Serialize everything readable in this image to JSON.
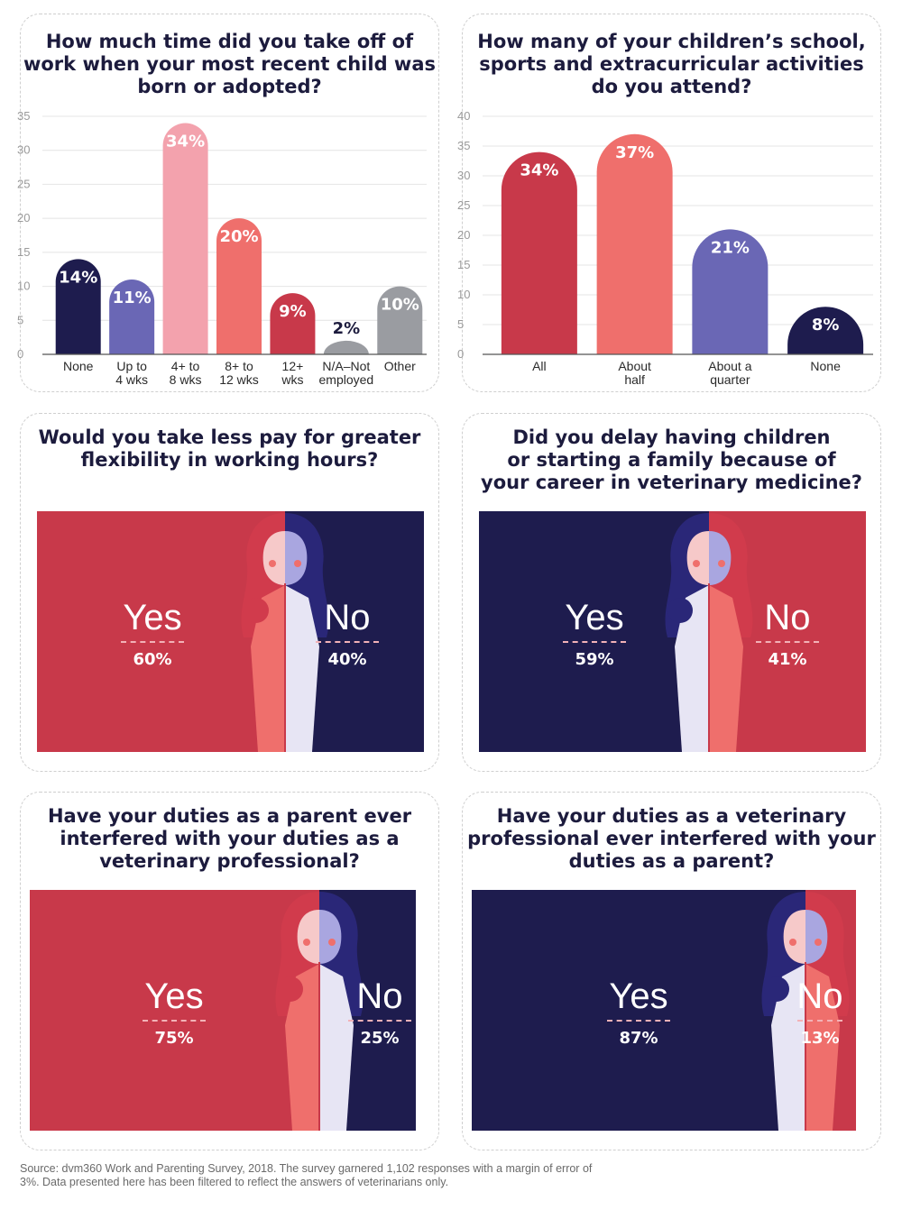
{
  "colors": {
    "navy": "#1e1c4e",
    "red": "#c8394a",
    "pink": "#f3a2ad",
    "salmon": "#ef6f6c",
    "purple": "#6a67b5",
    "gray": "#9a9ca1"
  },
  "chart_data": [
    {
      "type": "bar",
      "title": "How much time did you take off of work when your most recent child was born or adopted?",
      "categories": [
        "None",
        "Up to\n4 wks",
        "4+ to\n8 wks",
        "8+ to\n12 wks",
        "12+\nwks",
        "N/A–Not\nemployed",
        "Other"
      ],
      "values": [
        14,
        11,
        34,
        20,
        9,
        2,
        10
      ],
      "labels": [
        "14%",
        "11%",
        "34%",
        "20%",
        "9%",
        "2%",
        "10%"
      ],
      "bar_colors": [
        "#1e1c4e",
        "#6a67b5",
        "#f3a2ad",
        "#ef6f6c",
        "#c8394a",
        "#9a9ca1",
        "#9a9ca1"
      ],
      "ylim": [
        0,
        35
      ],
      "yticks": [
        0,
        5,
        10,
        15,
        20,
        25,
        30,
        35
      ],
      "grid": true
    },
    {
      "type": "bar",
      "title": "How many of your children’s school, sports and extracurricular activities do you attend?",
      "categories": [
        "All",
        "About\nhalf",
        "About a\nquarter",
        "None"
      ],
      "values": [
        34,
        37,
        21,
        8
      ],
      "labels": [
        "34%",
        "37%",
        "21%",
        "8%"
      ],
      "bar_colors": [
        "#c8394a",
        "#ef6f6c",
        "#6a67b5",
        "#1e1c4e"
      ],
      "ylim": [
        0,
        40
      ],
      "yticks": [
        0,
        5,
        10,
        15,
        20,
        25,
        30,
        35,
        40
      ],
      "grid": true
    },
    {
      "type": "bar",
      "title": "Would you take less pay for greater flexibility in working hours?",
      "categories": [
        "Yes",
        "No"
      ],
      "values": [
        60,
        40
      ],
      "labels": [
        "60%",
        "40%"
      ]
    },
    {
      "type": "bar",
      "title": "Did you delay having children or starting a family because of your career in veterinary medicine?",
      "categories": [
        "Yes",
        "No"
      ],
      "values": [
        59,
        41
      ],
      "labels": [
        "59%",
        "41%"
      ]
    },
    {
      "type": "bar",
      "title": "Have your duties as a parent ever interfered with your duties as a veterinary professional?",
      "categories": [
        "Yes",
        "No"
      ],
      "values": [
        75,
        25
      ],
      "labels": [
        "75%",
        "25%"
      ]
    },
    {
      "type": "bar",
      "title": "Have your duties as a veterinary professional ever interfered with your duties as a parent?",
      "categories": [
        "Yes",
        "No"
      ],
      "values": [
        87,
        13
      ],
      "labels": [
        "87%",
        "13%"
      ]
    }
  ],
  "questions": {
    "q1": "How much time did you take off of\nwork when your most recent child was\nborn or adopted?",
    "q2": "How many of your children’s school,\nsports and extracurricular activities\ndo you attend?",
    "q3": "Would you take less pay for greater\nflexibility in working hours?",
    "q4": "Did you delay having children\nor starting a family because of\nyour career in veterinary medicine?",
    "q5": "Have your duties as a parent ever\ninterfered with your duties as a\nveterinary professional?",
    "q6": "Have your duties as a veterinary\nprofessional ever interfered with your\nduties as a parent?"
  },
  "polls": {
    "p3": {
      "yes_label": "Yes",
      "no_label": "No",
      "yes_pct": "60%",
      "no_pct": "40%",
      "yes_value": 60
    },
    "p4": {
      "yes_label": "Yes",
      "no_label": "No",
      "yes_pct": "59%",
      "no_pct": "41%",
      "yes_value": 59
    },
    "p5": {
      "yes_label": "Yes",
      "no_label": "No",
      "yes_pct": "75%",
      "no_pct": "25%",
      "yes_value": 75
    },
    "p6": {
      "yes_label": "Yes",
      "no_label": "No",
      "yes_pct": "87%",
      "no_pct": "13%",
      "yes_value": 87
    }
  },
  "source": "Source: dvm360 Work and Parenting Survey, 2018. The survey garnered 1,102 responses with a margin of error of 3%. Data presented here has been filtered to reflect the answers of veterinarians only."
}
